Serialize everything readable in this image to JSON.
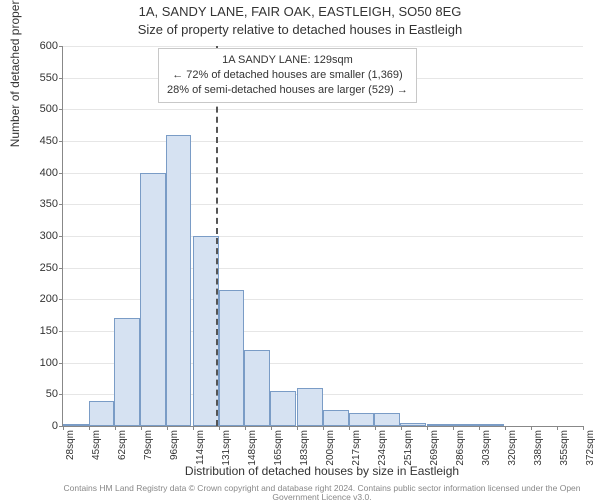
{
  "title_line1": "1A, SANDY LANE, FAIR OAK, EASTLEIGH, SO50 8EG",
  "title_line2": "Size of property relative to detached houses in Eastleigh",
  "ylabel": "Number of detached properties",
  "xlabel": "Distribution of detached houses by size in Eastleigh",
  "attribution": "Contains HM Land Registry data © Crown copyright and database right 2024. Contains public sector information licensed under the Open Government Licence v3.0.",
  "legend": {
    "line1": "1A SANDY LANE: 129sqm",
    "line2": "← 72% of detached houses are smaller (1,369)",
    "line3": "28% of semi-detached houses are larger (529) →"
  },
  "chart": {
    "type": "histogram",
    "ylim": [
      0,
      600
    ],
    "ytick_step": 50,
    "xtick_labels": [
      "28sqm",
      "45sqm",
      "62sqm",
      "79sqm",
      "96sqm",
      "114sqm",
      "131sqm",
      "148sqm",
      "165sqm",
      "183sqm",
      "200sqm",
      "217sqm",
      "234sqm",
      "251sqm",
      "269sqm",
      "286sqm",
      "303sqm",
      "320sqm",
      "338sqm",
      "355sqm",
      "372sqm"
    ],
    "bars": [
      {
        "x": 28,
        "count": 3
      },
      {
        "x": 45,
        "count": 40
      },
      {
        "x": 62,
        "count": 170
      },
      {
        "x": 79,
        "count": 400
      },
      {
        "x": 96,
        "count": 460
      },
      {
        "x": 114,
        "count": 300
      },
      {
        "x": 131,
        "count": 215
      },
      {
        "x": 148,
        "count": 120
      },
      {
        "x": 165,
        "count": 55
      },
      {
        "x": 183,
        "count": 60
      },
      {
        "x": 200,
        "count": 25
      },
      {
        "x": 217,
        "count": 20
      },
      {
        "x": 234,
        "count": 20
      },
      {
        "x": 251,
        "count": 5
      },
      {
        "x": 269,
        "count": 3
      },
      {
        "x": 286,
        "count": 2
      },
      {
        "x": 303,
        "count": 3
      },
      {
        "x": 320,
        "count": 0
      },
      {
        "x": 338,
        "count": 0
      },
      {
        "x": 355,
        "count": 0
      }
    ],
    "xmin": 28,
    "xmax": 372,
    "bar_width_units": 17,
    "bar_fill": "#d6e2f2",
    "bar_stroke": "#7a9cc6",
    "grid_color": "#e6e6e6",
    "ref_line_x": 129,
    "ref_line_color": "#555555",
    "plot_bg": "#ffffff",
    "axis_color": "#888888",
    "tick_fontsize": 11,
    "label_fontsize": 12,
    "title_fontsize": 13
  }
}
